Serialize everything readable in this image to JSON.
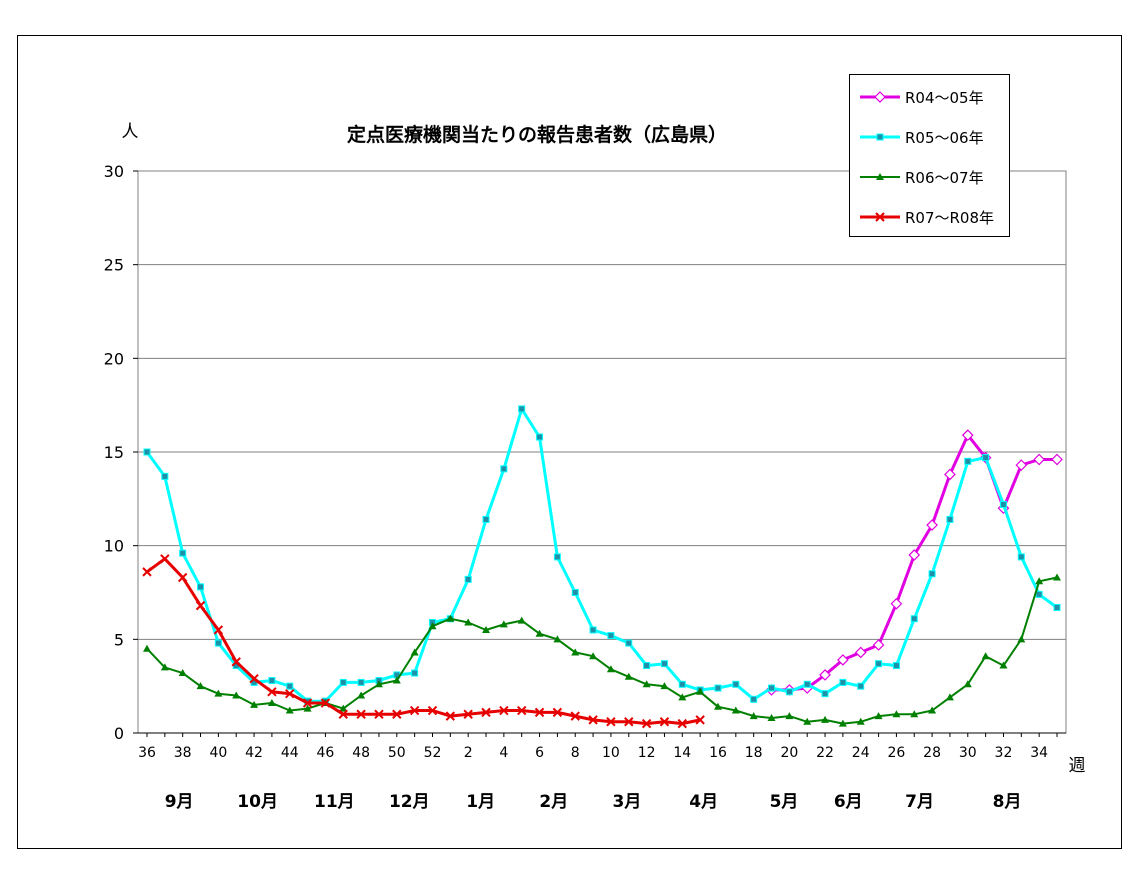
{
  "chart_data": {
    "type": "line",
    "title": "定点医療機関当たりの報告患者数（広島県）",
    "ylabel": "人",
    "xlabel": "週",
    "ylim": [
      0,
      30
    ],
    "yticks": [
      0,
      5,
      10,
      15,
      20,
      25,
      30
    ],
    "grid": true,
    "legend_position": "top-right",
    "x_tick_labels": [
      "36",
      "38",
      "40",
      "42",
      "44",
      "46",
      "48",
      "50",
      "52",
      "2",
      "4",
      "6",
      "8",
      "10",
      "12",
      "14",
      "16",
      "18",
      "20",
      "22",
      "24",
      "26",
      "28",
      "30",
      "32",
      "34"
    ],
    "month_labels": [
      "9月",
      "10月",
      "11月",
      "12月",
      "1月",
      "2月",
      "3月",
      "4月",
      "5月",
      "6月",
      "7月",
      "8月"
    ],
    "weeks": [
      36,
      37,
      38,
      39,
      40,
      41,
      42,
      43,
      44,
      45,
      46,
      47,
      48,
      49,
      50,
      51,
      52,
      1,
      2,
      3,
      4,
      5,
      6,
      7,
      8,
      9,
      10,
      11,
      12,
      13,
      14,
      15,
      16,
      17,
      18,
      19,
      20,
      21,
      22,
      23,
      24,
      25,
      26,
      27,
      28,
      29,
      30,
      31,
      32,
      33,
      34,
      35
    ],
    "series": [
      {
        "name": "R04～05年",
        "color": "#e100e1",
        "marker": "diamond",
        "values": [
          null,
          null,
          null,
          null,
          null,
          null,
          null,
          null,
          null,
          null,
          null,
          null,
          null,
          null,
          null,
          null,
          null,
          null,
          null,
          null,
          null,
          null,
          null,
          null,
          null,
          null,
          null,
          null,
          null,
          null,
          null,
          null,
          null,
          null,
          null,
          2.3,
          2.3,
          2.4,
          3.1,
          3.9,
          4.3,
          4.7,
          6.9,
          9.5,
          11.1,
          13.8,
          15.9,
          14.7,
          12.0,
          14.3,
          14.6,
          14.6
        ]
      },
      {
        "name": "R05～06年",
        "color": "#00ffff",
        "marker": "square",
        "values": [
          15.0,
          13.7,
          9.6,
          7.8,
          4.8,
          3.6,
          2.7,
          2.8,
          2.5,
          1.7,
          1.7,
          2.7,
          2.7,
          2.8,
          3.1,
          3.2,
          5.9,
          6.1,
          8.2,
          11.4,
          14.1,
          17.3,
          15.8,
          9.4,
          7.5,
          5.5,
          5.2,
          4.8,
          3.6,
          3.7,
          2.6,
          2.3,
          2.4,
          2.6,
          1.8,
          2.4,
          2.2,
          2.6,
          2.1,
          2.7,
          2.5,
          3.7,
          3.6,
          6.1,
          8.5,
          11.4,
          14.5,
          14.7,
          12.2,
          9.4,
          7.4,
          6.7
        ]
      },
      {
        "name": "R06～07年",
        "color": "#008000",
        "marker": "triangle",
        "values": [
          4.5,
          3.5,
          3.2,
          2.5,
          2.1,
          2.0,
          1.5,
          1.6,
          1.2,
          1.3,
          1.6,
          1.3,
          2.0,
          2.6,
          2.8,
          4.3,
          5.7,
          6.1,
          5.9,
          5.5,
          5.8,
          6.0,
          5.3,
          5.0,
          4.3,
          4.1,
          3.4,
          3.0,
          2.6,
          2.5,
          1.9,
          2.2,
          1.4,
          1.2,
          0.9,
          0.8,
          0.9,
          0.6,
          0.7,
          0.5,
          0.6,
          0.9,
          1.0,
          1.0,
          1.2,
          1.9,
          2.6,
          4.1,
          3.6,
          5.0,
          8.1,
          8.3
        ]
      },
      {
        "name": "R07～R08年",
        "color": "#e60000",
        "marker": "x",
        "values": [
          8.6,
          9.3,
          8.3,
          6.8,
          5.5,
          3.8,
          2.9,
          2.2,
          2.1,
          1.6,
          1.6,
          1.0,
          1.0,
          1.0,
          1.0,
          1.2,
          1.2,
          0.9,
          1.0,
          1.1,
          1.2,
          1.2,
          1.1,
          1.1,
          0.9,
          0.7,
          0.6,
          0.6,
          0.5,
          0.6,
          0.5,
          0.7,
          null,
          null,
          null,
          null,
          null,
          null,
          null,
          null,
          null,
          null,
          null,
          null,
          null,
          null,
          null,
          null,
          null,
          null,
          null,
          null
        ]
      }
    ]
  }
}
